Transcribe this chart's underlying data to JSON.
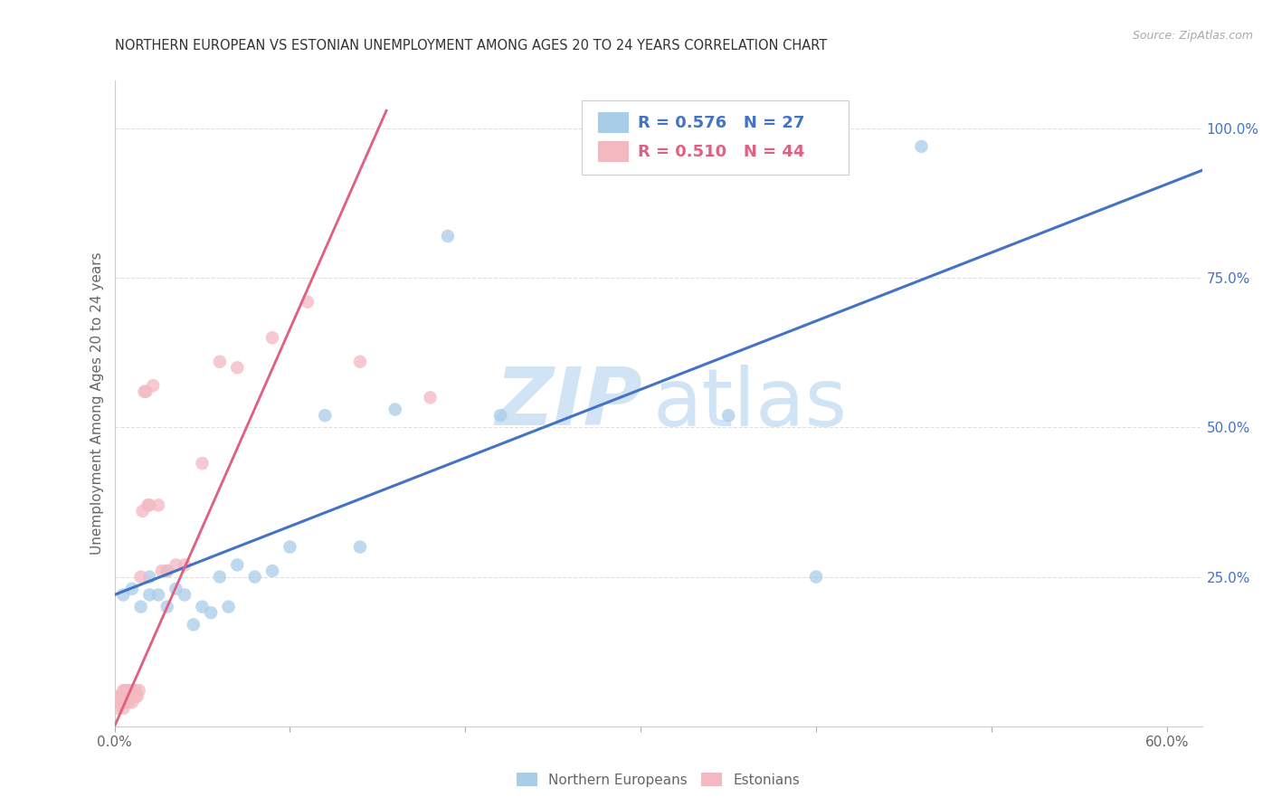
{
  "title": "NORTHERN EUROPEAN VS ESTONIAN UNEMPLOYMENT AMONG AGES 20 TO 24 YEARS CORRELATION CHART",
  "source": "Source: ZipAtlas.com",
  "ylabel": "Unemployment Among Ages 20 to 24 years",
  "xlim": [
    0.0,
    0.62
  ],
  "ylim": [
    0.0,
    1.08
  ],
  "xtick_positions": [
    0.0,
    0.1,
    0.2,
    0.3,
    0.4,
    0.5,
    0.6
  ],
  "xticklabels": [
    "0.0%",
    "",
    "",
    "",
    "",
    "",
    "60.0%"
  ],
  "ytick_positions": [
    0.0,
    0.25,
    0.5,
    0.75,
    1.0
  ],
  "yticklabels": [
    "",
    "25.0%",
    "50.0%",
    "75.0%",
    "100.0%"
  ],
  "legend_r1": "R = 0.576",
  "legend_n1": "N = 27",
  "legend_r2": "R = 0.510",
  "legend_n2": "N = 44",
  "blue_scatter_x": [
    0.005,
    0.01,
    0.015,
    0.02,
    0.02,
    0.025,
    0.03,
    0.03,
    0.035,
    0.04,
    0.045,
    0.05,
    0.055,
    0.06,
    0.065,
    0.07,
    0.08,
    0.09,
    0.1,
    0.12,
    0.14,
    0.16,
    0.19,
    0.22,
    0.4,
    0.46,
    0.35
  ],
  "blue_scatter_y": [
    0.22,
    0.23,
    0.2,
    0.25,
    0.22,
    0.22,
    0.2,
    0.26,
    0.23,
    0.22,
    0.17,
    0.2,
    0.19,
    0.25,
    0.2,
    0.27,
    0.25,
    0.26,
    0.3,
    0.52,
    0.3,
    0.53,
    0.82,
    0.52,
    0.25,
    0.97,
    0.52
  ],
  "pink_scatter_x": [
    0.002,
    0.002,
    0.003,
    0.003,
    0.004,
    0.004,
    0.005,
    0.005,
    0.005,
    0.006,
    0.006,
    0.007,
    0.007,
    0.008,
    0.008,
    0.009,
    0.009,
    0.01,
    0.01,
    0.01,
    0.011,
    0.012,
    0.012,
    0.013,
    0.014,
    0.015,
    0.016,
    0.017,
    0.018,
    0.019,
    0.02,
    0.022,
    0.025,
    0.027,
    0.03,
    0.035,
    0.04,
    0.05,
    0.06,
    0.07,
    0.09,
    0.11,
    0.14,
    0.18
  ],
  "pink_scatter_y": [
    0.05,
    0.03,
    0.04,
    0.05,
    0.04,
    0.05,
    0.03,
    0.04,
    0.06,
    0.05,
    0.06,
    0.05,
    0.06,
    0.04,
    0.05,
    0.05,
    0.06,
    0.04,
    0.05,
    0.06,
    0.06,
    0.05,
    0.06,
    0.05,
    0.06,
    0.25,
    0.36,
    0.56,
    0.56,
    0.37,
    0.37,
    0.57,
    0.37,
    0.26,
    0.26,
    0.27,
    0.27,
    0.44,
    0.61,
    0.6,
    0.65,
    0.71,
    0.61,
    0.55
  ],
  "blue_line_x": [
    0.0,
    0.62
  ],
  "blue_line_y": [
    0.22,
    0.93
  ],
  "pink_line_x": [
    0.0,
    0.155
  ],
  "pink_line_y": [
    0.0,
    1.03
  ],
  "blue_color": "#a8cde8",
  "blue_line_color": "#4472c4",
  "pink_color": "#f4b8c1",
  "pink_line_color": "#e06080",
  "pink_dash_color": "#f0a0b0",
  "background_color": "#ffffff",
  "grid_color": "#e0e0e0",
  "right_tick_color": "#4472c4",
  "watermark_color": "#d0e4f5"
}
